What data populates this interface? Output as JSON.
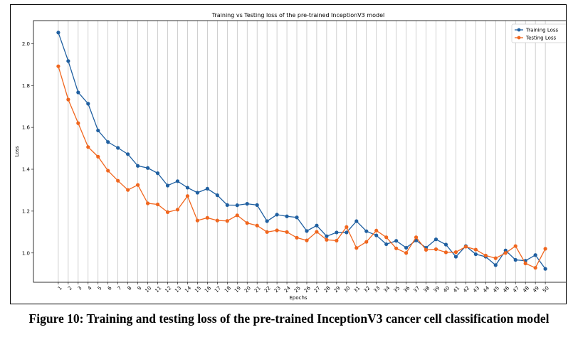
{
  "chart_data": {
    "type": "line",
    "title": "Training vs Testing loss of the pre-trained InceptionV3 model",
    "xlabel": "Epochs",
    "ylabel": "Loss",
    "x": [
      1,
      2,
      3,
      4,
      5,
      6,
      7,
      8,
      9,
      10,
      11,
      12,
      13,
      14,
      15,
      16,
      17,
      18,
      19,
      20,
      21,
      22,
      23,
      24,
      25,
      26,
      27,
      28,
      29,
      30,
      31,
      32,
      33,
      34,
      35,
      36,
      37,
      38,
      39,
      40,
      41,
      42,
      43,
      44,
      45,
      46,
      47,
      48,
      49,
      50
    ],
    "xlim": [
      -1.5,
      52.5
    ],
    "ylim": [
      0.86,
      2.11
    ],
    "yticks": [
      1.0,
      1.2,
      1.4,
      1.6,
      1.8,
      2.0
    ],
    "ytick_labels": [
      "1.0",
      "1.2",
      "1.4",
      "1.6",
      "1.8",
      "2.0"
    ],
    "grid": "vertical",
    "legend_position": "top-right",
    "series": [
      {
        "name": "Training Loss",
        "color": "#1f5fa0",
        "values": [
          2.053,
          1.917,
          1.767,
          1.713,
          1.585,
          1.53,
          1.502,
          1.472,
          1.416,
          1.406,
          1.381,
          1.322,
          1.343,
          1.312,
          1.288,
          1.307,
          1.276,
          1.229,
          1.228,
          1.235,
          1.229,
          1.152,
          1.183,
          1.175,
          1.17,
          1.105,
          1.131,
          1.08,
          1.098,
          1.098,
          1.152,
          1.104,
          1.084,
          1.042,
          1.058,
          1.025,
          1.06,
          1.025,
          1.065,
          1.04,
          0.982,
          1.033,
          0.994,
          0.982,
          0.942,
          1.012,
          0.967,
          0.963,
          0.99,
          0.924
        ]
      },
      {
        "name": "Testing Loss",
        "color": "#f0661e",
        "values": [
          1.892,
          1.733,
          1.62,
          1.506,
          1.46,
          1.393,
          1.345,
          1.301,
          1.325,
          1.237,
          1.232,
          1.195,
          1.207,
          1.272,
          1.155,
          1.168,
          1.155,
          1.153,
          1.18,
          1.143,
          1.131,
          1.1,
          1.108,
          1.1,
          1.073,
          1.06,
          1.101,
          1.063,
          1.059,
          1.124,
          1.024,
          1.053,
          1.107,
          1.075,
          1.022,
          1.0,
          1.075,
          1.015,
          1.018,
          1.003,
          1.004,
          1.03,
          1.016,
          0.988,
          0.975,
          1.0,
          1.033,
          0.95,
          0.929,
          1.02
        ]
      }
    ]
  },
  "caption": "Figure 10: Training and testing loss of the pre-trained InceptionV3 cancer cell classification model"
}
